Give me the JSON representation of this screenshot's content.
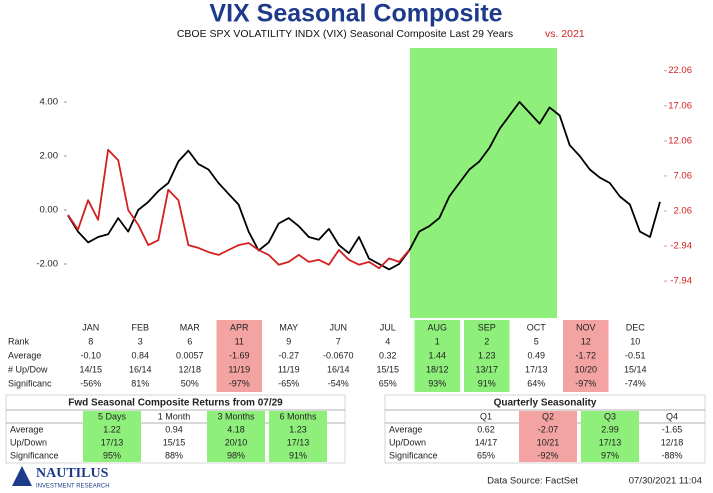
{
  "chart_data": {
    "type": "line",
    "title": "VIX Seasonal Composite",
    "subtitle": "CBOE SPX VOLATILITY INDX (VIX) Seasonal Composite Last 29 Years",
    "subtitle_note": "vs. 2021",
    "highlight_color": "#8ef07a",
    "series": [
      {
        "color": "#000000",
        "values": [
          -0.2,
          -0.8,
          -1.2,
          -1.0,
          -0.9,
          -0.3,
          -0.8,
          0.0,
          0.3,
          0.7,
          1.0,
          1.8,
          2.2,
          1.7,
          1.5,
          1.0,
          0.6,
          0.2,
          -0.8,
          -1.5,
          -1.2,
          -0.5,
          -0.3,
          -0.6,
          -1.0,
          -1.1,
          -0.7,
          -1.3,
          -1.6,
          -1.0,
          -1.8,
          -2.0,
          -2.2,
          -2.0,
          -1.5,
          -0.8,
          -0.6,
          -0.3,
          0.5,
          1.0,
          1.5,
          1.8,
          2.3,
          3.0,
          3.5,
          4.0,
          3.6,
          3.2,
          3.8,
          3.5,
          2.4,
          2.0,
          1.5,
          1.2,
          1.0,
          0.5,
          0.2,
          -0.8,
          -1.0,
          0.3
        ]
      },
      {
        "color": "#d42020",
        "axis": "y2",
        "values": [
          1.5,
          -0.6,
          3.6,
          0.8,
          10.8,
          9.3,
          2.2,
          0.1,
          -2.8,
          -2.1,
          5.1,
          3.6,
          -2.8,
          -3.2,
          -3.8,
          -4.2,
          -3.5,
          -2.8,
          -2.5,
          -3.5,
          -4.2,
          -5.6,
          -5.2,
          -4.2,
          -5.2,
          -4.9,
          -5.6,
          -3.5,
          -4.9,
          -5.6,
          -5.2,
          -6.1,
          -4.7,
          -5.2,
          -3.5
        ]
      }
    ],
    "ylim": [
      -4,
      6
    ],
    "yticks": [
      {
        "value": -2,
        "label": "-2.00"
      },
      {
        "value": 0,
        "label": "0.00"
      },
      {
        "value": 2,
        "label": "2.00"
      },
      {
        "value": 4,
        "label": "4.00"
      }
    ],
    "y2lim": [
      -13.2,
      25.3
    ],
    "y2ticks": [
      -7.94,
      -2.94,
      2.06,
      7.06,
      12.06,
      17.06,
      22.06
    ],
    "y2_color": "#d42020"
  },
  "month_table": {
    "columns": [
      "JAN",
      "FEB",
      "MAR",
      "APR",
      "MAY",
      "JUN",
      "JUL",
      "AUG",
      "SEP",
      "OCT",
      "NOV",
      "DEC"
    ],
    "highlight": [
      null,
      null,
      null,
      "#f4a3a3",
      null,
      null,
      null,
      "#8ef07a",
      "#8ef07a",
      null,
      "#f4a3a3",
      null
    ],
    "rows": [
      {
        "label": "Rank",
        "cells": [
          "8",
          "3",
          "6",
          "11",
          "9",
          "7",
          "4",
          "1",
          "2",
          "5",
          "12",
          "10"
        ]
      },
      {
        "label": "Average",
        "cells": [
          "-0.10",
          "0.84",
          "0.0057",
          "-1.69",
          "-0.27",
          "-0.0670",
          "0.32",
          "1.44",
          "1.23",
          "0.49",
          "-1.72",
          "-0.51"
        ]
      },
      {
        "label": "# Up/Dow",
        "cells": [
          "14/15",
          "16/14",
          "12/18",
          "11/19",
          "11/19",
          "16/14",
          "15/15",
          "18/12",
          "13/17",
          "17/13",
          "10/20",
          "15/14"
        ]
      },
      {
        "label": "Significanc",
        "cells": [
          "-56%",
          "81%",
          "50%",
          "-97%",
          "-65%",
          "-54%",
          "65%",
          "93%",
          "91%",
          "64%",
          "-97%",
          "-74%"
        ]
      }
    ]
  },
  "fwd_table": {
    "title": "Fwd Seasonal Composite Returns from 07/29",
    "columns": [
      "5 Days",
      "1 Month",
      "3 Months",
      "6 Months"
    ],
    "highlight": [
      "#8ef07a",
      null,
      "#8ef07a",
      "#8ef07a"
    ],
    "rows": [
      {
        "label": "Average",
        "cells": [
          "1.22",
          "0.94",
          "4.18",
          "1.23"
        ]
      },
      {
        "label": "Up/Down",
        "cells": [
          "17/13",
          "15/15",
          "20/10",
          "17/13"
        ]
      },
      {
        "label": "Significance",
        "cells": [
          "95%",
          "88%",
          "98%",
          "91%"
        ]
      }
    ]
  },
  "quarterly_table": {
    "title": "Quarterly Seasonality",
    "columns": [
      "Q1",
      "Q2",
      "Q3",
      "Q4"
    ],
    "highlight": [
      null,
      "#f4a3a3",
      "#8ef07a",
      null
    ],
    "rows": [
      {
        "label": "Average",
        "cells": [
          "0.62",
          "-2.07",
          "2.99",
          "-1.65"
        ]
      },
      {
        "label": "Up/Down",
        "cells": [
          "14/17",
          "10/21",
          "17/13",
          "12/18"
        ]
      },
      {
        "label": "Significance",
        "cells": [
          "65%",
          "-92%",
          "97%",
          "-88%"
        ]
      }
    ]
  },
  "footer": {
    "logo": "NAUTILUS",
    "logo_sub": "INVESTMENT RESEARCH",
    "source": "Data Source: FactSet",
    "timestamp": "07/30/2021 11:04"
  }
}
